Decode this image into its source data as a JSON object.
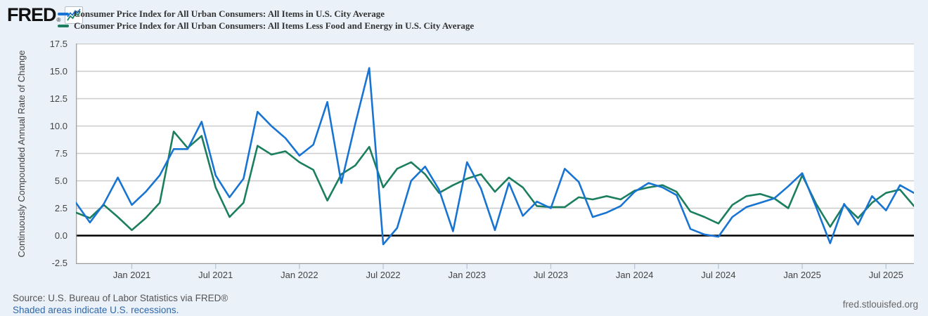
{
  "header": {
    "logo_text": "FRED",
    "logo_registered": "®",
    "legend": [
      {
        "label": "Consumer Price Index for All Urban Consumers: All Items in U.S. City Average",
        "color": "#1874d2"
      },
      {
        "label": "Consumer Price Index for All Urban Consumers: All Items Less Food and Energy in U.S. City Average",
        "color": "#1b7e5e"
      }
    ]
  },
  "footer": {
    "source": "Source: U.S. Bureau of Labor Statistics via FRED®",
    "recession_note": "Shaded areas indicate U.S. recessions.",
    "site": "fred.stlouisfed.org"
  },
  "chart_data": {
    "type": "line",
    "title": "",
    "ylabel": "Continuously Compounded Annual Rate of Change",
    "xlabel": "",
    "units": "percent",
    "frequency": "monthly",
    "x_start": "2020-09",
    "x_end": "2025-09",
    "ylim": [
      -2.5,
      17.5
    ],
    "grid": true,
    "zero_line": true,
    "legend_position": "top-left",
    "y_ticks": [
      17.5,
      15.0,
      12.5,
      10.0,
      7.5,
      5.0,
      2.5,
      0.0,
      -2.5
    ],
    "y_tick_labels": [
      "17.5",
      "15.0",
      "12.5",
      "10.0",
      "7.5",
      "5.0",
      "2.5",
      "0.0",
      "-2.5"
    ],
    "y_gridlines": [
      17.5,
      15.0,
      12.5,
      10.0,
      7.5,
      5.0,
      2.5
    ],
    "x_ticks": [
      {
        "index": 4,
        "label": "Jan 2021"
      },
      {
        "index": 10,
        "label": "Jul 2021"
      },
      {
        "index": 16,
        "label": "Jan 2022"
      },
      {
        "index": 22,
        "label": "Jul 2022"
      },
      {
        "index": 28,
        "label": "Jan 2023"
      },
      {
        "index": 34,
        "label": "Jul 2023"
      },
      {
        "index": 40,
        "label": "Jan 2024"
      },
      {
        "index": 46,
        "label": "Jul 2024"
      },
      {
        "index": 52,
        "label": "Jan 2025"
      },
      {
        "index": 58,
        "label": "Jul 2025"
      }
    ],
    "series": [
      {
        "name": "Consumer Price Index for All Urban Consumers: All Items in U.S. City Average",
        "color": "#1874d2",
        "values": [
          3.0,
          1.2,
          2.9,
          5.3,
          2.8,
          4.0,
          5.5,
          7.9,
          7.9,
          10.4,
          5.5,
          3.5,
          5.2,
          11.3,
          10.0,
          8.9,
          7.3,
          8.3,
          12.2,
          4.8,
          10.2,
          15.3,
          -0.8,
          0.7,
          5.0,
          6.3,
          4.2,
          0.4,
          6.7,
          4.3,
          0.5,
          4.8,
          1.8,
          3.1,
          2.5,
          6.1,
          4.9,
          1.7,
          2.1,
          2.7,
          4.0,
          4.8,
          4.4,
          3.7,
          0.6,
          0.1,
          -0.1,
          1.7,
          2.6,
          3.0,
          3.4,
          4.5,
          5.7,
          2.6,
          -0.7,
          2.9,
          1.0,
          3.6,
          2.3,
          4.6,
          3.9
        ]
      },
      {
        "name": "Consumer Price Index for All Urban Consumers: All Items Less Food and Energy in U.S. City Average",
        "color": "#1b7e5e",
        "values": [
          2.1,
          1.6,
          2.8,
          1.7,
          0.5,
          1.6,
          3.0,
          9.5,
          8.0,
          9.1,
          4.4,
          1.7,
          3.0,
          8.2,
          7.4,
          7.7,
          6.7,
          6.0,
          3.2,
          5.6,
          6.4,
          8.1,
          4.4,
          6.1,
          6.7,
          5.6,
          3.9,
          4.6,
          5.2,
          5.6,
          4.0,
          5.3,
          4.4,
          2.7,
          2.6,
          2.6,
          3.5,
          3.3,
          3.6,
          3.3,
          4.1,
          4.4,
          4.6,
          4.0,
          2.2,
          1.7,
          1.1,
          2.8,
          3.6,
          3.8,
          3.4,
          2.5,
          5.5,
          2.9,
          0.8,
          2.8,
          1.6,
          3.0,
          3.9,
          4.2,
          2.7
        ]
      }
    ],
    "colors": {
      "page_background": "#eaf1f9",
      "plot_background": "#ffffff",
      "gridline": "#cbcbcb",
      "zero_line": "#000000",
      "axis_border": "#999999",
      "tick_mark": "#b9c7d8",
      "axis_text": "#444444"
    }
  }
}
